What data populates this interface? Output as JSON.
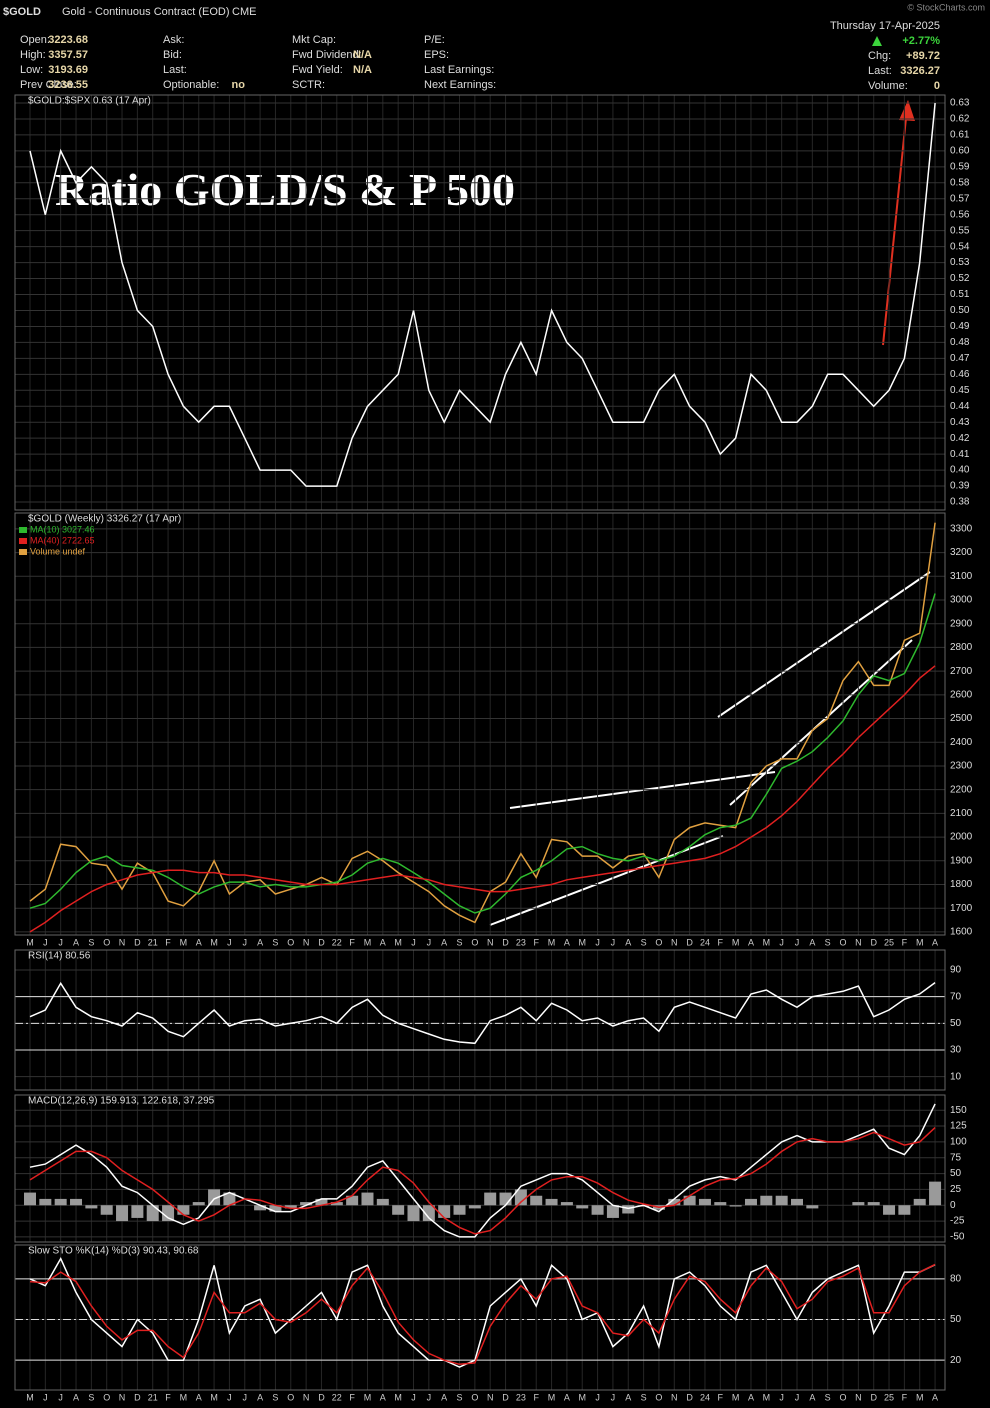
{
  "header": {
    "symbol": "$GOLD",
    "name": "Gold - Continuous Contract (EOD)",
    "exchange": "CME",
    "copyright": "© StockCharts.com",
    "date": "Thursday 17-Apr-2025",
    "change_pct": "+2.77%",
    "columns": [
      [
        {
          "label": "Open:",
          "value": "3223.68"
        },
        {
          "label": "High:",
          "value": "3357.57"
        },
        {
          "label": "Low:",
          "value": "3193.69"
        },
        {
          "label": "Prev Close:",
          "value": "3236.55"
        }
      ],
      [
        {
          "label": "Ask:"
        },
        {
          "label": "Bid:"
        },
        {
          "label": "Last:"
        },
        {
          "label": "Optionable:",
          "value": "no"
        }
      ],
      [
        {
          "label": "Mkt Cap:"
        },
        {
          "label": "Fwd Dividend:",
          "value": "N/A"
        },
        {
          "label": "Fwd Yield:",
          "value": "N/A"
        },
        {
          "label": "SCTR:"
        }
      ],
      [
        {
          "label": "P/E:"
        },
        {
          "label": "EPS:"
        },
        {
          "label": "Last Earnings:"
        },
        {
          "label": "Next Earnings:"
        }
      ],
      [
        {
          "label": "Chg:",
          "value": "+89.72"
        },
        {
          "label": "Last:",
          "value": "3326.27"
        },
        {
          "label": "Volume:",
          "value": "0"
        }
      ]
    ]
  },
  "chart_data": [
    {
      "type": "line",
      "title": "$GOLD:$SPX 0.63 (17 Apr)",
      "annotation": "Ratio GOLD/S & P 500",
      "ylim": [
        0.375,
        0.635
      ],
      "yticks": [
        0.38,
        0.39,
        {
          "value": 0.4,
          "label": "0.40"
        },
        0.41,
        0.42,
        0.43,
        0.44,
        0.45,
        0.46,
        0.47,
        0.48,
        0.49,
        {
          "value": 0.5,
          "label": "0.50"
        },
        0.51,
        0.52,
        0.53,
        0.54,
        0.55,
        0.56,
        0.57,
        0.58,
        0.59,
        {
          "value": 0.6,
          "label": "0.60"
        },
        0.61,
        0.62,
        0.63
      ],
      "series": [
        {
          "color": "#ffffff",
          "values": [
            0.6,
            0.56,
            0.6,
            0.58,
            0.59,
            0.58,
            0.53,
            0.5,
            0.49,
            0.46,
            0.44,
            0.43,
            0.44,
            0.44,
            0.42,
            0.4,
            0.4,
            0.4,
            0.39,
            0.39,
            0.39,
            0.42,
            0.44,
            0.45,
            0.46,
            0.5,
            0.45,
            0.43,
            0.45,
            0.44,
            0.43,
            0.46,
            0.48,
            0.46,
            0.5,
            0.48,
            0.47,
            0.45,
            0.43,
            0.43,
            0.43,
            0.45,
            0.46,
            0.44,
            0.43,
            0.41,
            0.42,
            0.46,
            0.45,
            0.43,
            0.43,
            0.44,
            0.46,
            0.46,
            0.45,
            0.44,
            0.45,
            0.47,
            0.53,
            0.63
          ]
        }
      ]
    },
    {
      "type": "line",
      "title": "$GOLD (Weekly) 3326.27 (17 Apr)",
      "legend_note": "Volume undef",
      "ylim": [
        1587,
        3367
      ],
      "yticks": [
        1600,
        1700,
        1800,
        1900,
        2000,
        2100,
        2200,
        2300,
        2400,
        2500,
        2600,
        2700,
        2800,
        2900,
        3000,
        3100,
        3200,
        3300
      ],
      "categories": [
        "M",
        "J",
        "J",
        "A",
        "S",
        "O",
        "N",
        "D",
        "21",
        "F",
        "M",
        "A",
        "M",
        "J",
        "J",
        "A",
        "S",
        "O",
        "N",
        "D",
        "22",
        "F",
        "M",
        "A",
        "M",
        "J",
        "J",
        "A",
        "S",
        "O",
        "N",
        "D",
        "23",
        "F",
        "M",
        "A",
        "M",
        "J",
        "J",
        "A",
        "S",
        "O",
        "N",
        "D",
        "24",
        "F",
        "M",
        "A",
        "M",
        "J",
        "J",
        "A",
        "S",
        "O",
        "N",
        "D",
        "25",
        "F",
        "M",
        "A"
      ],
      "series": [
        {
          "color": "#e0a040",
          "values": [
            1730,
            1780,
            1970,
            1960,
            1890,
            1880,
            1780,
            1890,
            1850,
            1730,
            1710,
            1770,
            1900,
            1760,
            1810,
            1820,
            1760,
            1780,
            1800,
            1830,
            1800,
            1910,
            1940,
            1900,
            1850,
            1810,
            1770,
            1710,
            1670,
            1640,
            1770,
            1810,
            1930,
            1830,
            1990,
            1980,
            1920,
            1920,
            1870,
            1920,
            1930,
            1830,
            1990,
            2040,
            2060,
            2050,
            2040,
            2230,
            2300,
            2330,
            2330,
            2450,
            2500,
            2660,
            2740,
            2640,
            2640,
            2830,
            2860,
            3326.27
          ]
        },
        {
          "name": "MA(10) 3027.46",
          "color": "#2eb82e",
          "values": [
            1700,
            1720,
            1780,
            1850,
            1900,
            1920,
            1880,
            1870,
            1860,
            1830,
            1790,
            1760,
            1790,
            1810,
            1810,
            1790,
            1800,
            1790,
            1790,
            1800,
            1810,
            1840,
            1890,
            1910,
            1890,
            1850,
            1810,
            1760,
            1710,
            1680,
            1700,
            1760,
            1830,
            1860,
            1900,
            1950,
            1960,
            1930,
            1910,
            1900,
            1920,
            1900,
            1920,
            1960,
            2010,
            2040,
            2050,
            2080,
            2180,
            2290,
            2320,
            2360,
            2420,
            2490,
            2600,
            2680,
            2660,
            2690,
            2820,
            3027.46
          ]
        },
        {
          "name": "MA(40) 2722.65",
          "color": "#e02020",
          "values": [
            1600,
            1640,
            1690,
            1730,
            1770,
            1800,
            1820,
            1840,
            1850,
            1860,
            1860,
            1850,
            1850,
            1840,
            1840,
            1830,
            1820,
            1810,
            1800,
            1800,
            1800,
            1810,
            1820,
            1830,
            1840,
            1830,
            1820,
            1800,
            1790,
            1780,
            1770,
            1770,
            1780,
            1790,
            1800,
            1820,
            1830,
            1840,
            1850,
            1860,
            1870,
            1880,
            1890,
            1900,
            1910,
            1930,
            1960,
            2000,
            2040,
            2090,
            2150,
            2220,
            2290,
            2350,
            2420,
            2480,
            2540,
            2600,
            2670,
            2722.65
          ]
        }
      ]
    },
    {
      "type": "line",
      "title": "RSI(14) 80.56",
      "ylim": [
        0,
        105
      ],
      "yticks": [
        10,
        30,
        50,
        70,
        90
      ],
      "ref_lines": [
        30,
        50,
        70
      ],
      "series": [
        {
          "color": "#ffffff",
          "values": [
            55,
            60,
            80,
            62,
            55,
            52,
            48,
            58,
            54,
            44,
            40,
            50,
            60,
            48,
            52,
            53,
            48,
            50,
            52,
            55,
            50,
            62,
            68,
            56,
            50,
            46,
            42,
            38,
            36,
            35,
            52,
            56,
            62,
            52,
            65,
            60,
            52,
            54,
            48,
            52,
            54,
            44,
            62,
            66,
            62,
            58,
            54,
            72,
            75,
            68,
            62,
            70,
            72,
            74,
            78,
            55,
            60,
            68,
            72,
            80.56
          ]
        }
      ]
    },
    {
      "type": "line",
      "title": "MACD(12,26,9) 159.913, 122.618, 37.295",
      "ylim": [
        -58,
        174
      ],
      "yticks": [
        -50,
        -25,
        0,
        25,
        50,
        75,
        100,
        125,
        150
      ],
      "series": [
        {
          "type": "bar",
          "color": "#9a9a9a",
          "values": [
            20,
            10,
            10,
            10,
            -5,
            -15,
            -25,
            -20,
            -25,
            -25,
            -15,
            5,
            25,
            20,
            0,
            -8,
            -10,
            -5,
            5,
            10,
            5,
            15,
            20,
            10,
            -15,
            -25,
            -25,
            -20,
            -15,
            -5,
            20,
            20,
            25,
            15,
            10,
            5,
            -5,
            -15,
            -20,
            -13,
            -2,
            -7,
            10,
            15,
            10,
            5,
            -2,
            10,
            15,
            15,
            10,
            -5,
            0,
            0,
            5,
            5,
            -15,
            -15,
            10,
            37.295
          ]
        },
        {
          "color": "#ffffff",
          "values": [
            60,
            65,
            80,
            95,
            80,
            60,
            30,
            20,
            0,
            -20,
            -30,
            -20,
            10,
            20,
            10,
            0,
            -10,
            -10,
            0,
            10,
            10,
            30,
            60,
            70,
            40,
            10,
            -20,
            -40,
            -50,
            -50,
            -20,
            0,
            30,
            40,
            50,
            50,
            40,
            20,
            0,
            -5,
            0,
            -10,
            10,
            30,
            40,
            45,
            40,
            60,
            80,
            100,
            110,
            100,
            100,
            100,
            110,
            120,
            90,
            80,
            110,
            159.913
          ]
        },
        {
          "color": "#e02020",
          "values": [
            40,
            55,
            70,
            85,
            85,
            75,
            55,
            40,
            25,
            5,
            -15,
            -25,
            -15,
            0,
            10,
            8,
            0,
            -5,
            -5,
            0,
            5,
            15,
            40,
            60,
            55,
            35,
            5,
            -20,
            -35,
            -45,
            -40,
            -20,
            5,
            25,
            40,
            45,
            45,
            35,
            20,
            8,
            2,
            -3,
            0,
            15,
            30,
            40,
            42,
            50,
            65,
            85,
            100,
            105,
            100,
            100,
            105,
            115,
            105,
            95,
            100,
            122.618
          ]
        }
      ]
    },
    {
      "type": "line",
      "title": "Slow STO %K(14) %D(3) 90.43, 90.68",
      "ylim": [
        -2,
        105
      ],
      "yticks": [
        20,
        50,
        80
      ],
      "ref_lines": [
        20,
        50,
        80
      ],
      "categories": [
        "M",
        "J",
        "J",
        "A",
        "S",
        "O",
        "N",
        "D",
        "21",
        "F",
        "M",
        "A",
        "M",
        "J",
        "J",
        "A",
        "S",
        "O",
        "N",
        "D",
        "22",
        "F",
        "M",
        "A",
        "M",
        "J",
        "J",
        "A",
        "S",
        "O",
        "N",
        "D",
        "23",
        "F",
        "M",
        "A",
        "M",
        "J",
        "J",
        "A",
        "S",
        "O",
        "N",
        "D",
        "24",
        "F",
        "M",
        "A",
        "M",
        "J",
        "J",
        "A",
        "S",
        "O",
        "N",
        "D",
        "25",
        "F",
        "M",
        "A"
      ],
      "series": [
        {
          "color": "#ffffff",
          "values": [
            80,
            75,
            95,
            70,
            50,
            40,
            30,
            50,
            40,
            20,
            20,
            50,
            90,
            40,
            60,
            65,
            40,
            50,
            60,
            70,
            50,
            85,
            90,
            60,
            40,
            30,
            20,
            20,
            15,
            20,
            60,
            70,
            80,
            60,
            90,
            80,
            50,
            55,
            30,
            40,
            60,
            30,
            80,
            85,
            75,
            60,
            50,
            85,
            90,
            70,
            50,
            70,
            80,
            85,
            90,
            40,
            60,
            85,
            85,
            90.43
          ]
        },
        {
          "color": "#e02020",
          "values": [
            78,
            77,
            85,
            78,
            60,
            45,
            35,
            42,
            42,
            30,
            22,
            40,
            70,
            55,
            55,
            62,
            50,
            48,
            55,
            65,
            55,
            75,
            88,
            70,
            48,
            35,
            25,
            20,
            17,
            18,
            45,
            62,
            75,
            65,
            80,
            82,
            60,
            55,
            40,
            38,
            50,
            40,
            65,
            82,
            78,
            65,
            55,
            75,
            88,
            78,
            58,
            65,
            78,
            82,
            88,
            55,
            55,
            75,
            85,
            90.68
          ]
        }
      ]
    }
  ]
}
